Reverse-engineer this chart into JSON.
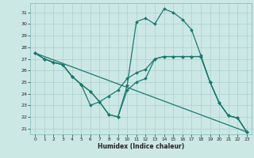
{
  "xlabel": "Humidex (Indice chaleur)",
  "background_color": "#cce8e5",
  "grid_color": "#aacfcc",
  "line_color": "#1a7a6e",
  "xlim": [
    -0.5,
    23.5
  ],
  "ylim": [
    20.5,
    31.8
  ],
  "yticks": [
    21,
    22,
    23,
    24,
    25,
    26,
    27,
    28,
    29,
    30,
    31
  ],
  "xticks": [
    0,
    1,
    2,
    3,
    4,
    5,
    6,
    7,
    8,
    9,
    10,
    11,
    12,
    13,
    14,
    15,
    16,
    17,
    18,
    19,
    20,
    21,
    22,
    23
  ],
  "series": [
    {
      "x": [
        0,
        1,
        2,
        3,
        4,
        5,
        6,
        7,
        8,
        9,
        10,
        11,
        12,
        13,
        14,
        15,
        16,
        17,
        18,
        19,
        20,
        21,
        22,
        23
      ],
      "y": [
        27.5,
        27.0,
        26.7,
        26.5,
        25.5,
        24.8,
        23.0,
        23.3,
        22.2,
        22.0,
        24.7,
        30.2,
        30.5,
        30.0,
        31.3,
        31.0,
        30.4,
        29.5,
        27.3,
        25.0,
        23.2,
        22.1,
        21.9,
        20.7
      ],
      "marker": "D",
      "markersize": 2.0,
      "linewidth": 0.9
    },
    {
      "x": [
        0,
        1,
        2,
        3,
        4,
        5,
        6,
        7,
        8,
        9,
        10,
        11,
        12,
        13,
        14,
        15,
        16,
        17,
        18,
        19,
        20,
        21,
        22,
        23
      ],
      "y": [
        27.5,
        27.0,
        26.7,
        26.5,
        25.5,
        24.8,
        24.2,
        23.3,
        23.8,
        24.3,
        25.3,
        25.8,
        26.1,
        27.0,
        27.2,
        27.2,
        27.2,
        27.2,
        27.2,
        25.0,
        23.2,
        22.1,
        21.9,
        20.7
      ],
      "marker": "D",
      "markersize": 2.0,
      "linewidth": 0.9
    },
    {
      "x": [
        0,
        1,
        2,
        3,
        4,
        5,
        6,
        7,
        8,
        9,
        10,
        11,
        12,
        13,
        14,
        15,
        16,
        17,
        18,
        19,
        20,
        21,
        22,
        23
      ],
      "y": [
        27.5,
        27.0,
        26.7,
        26.5,
        25.5,
        24.8,
        24.2,
        23.3,
        22.2,
        22.0,
        24.3,
        25.0,
        25.3,
        27.0,
        27.2,
        27.2,
        27.2,
        27.2,
        27.2,
        25.0,
        23.2,
        22.1,
        21.9,
        20.7
      ],
      "marker": "D",
      "markersize": 2.0,
      "linewidth": 0.9
    },
    {
      "x": [
        0,
        23
      ],
      "y": [
        27.5,
        20.7
      ],
      "marker": null,
      "markersize": 0,
      "linewidth": 0.9
    }
  ]
}
